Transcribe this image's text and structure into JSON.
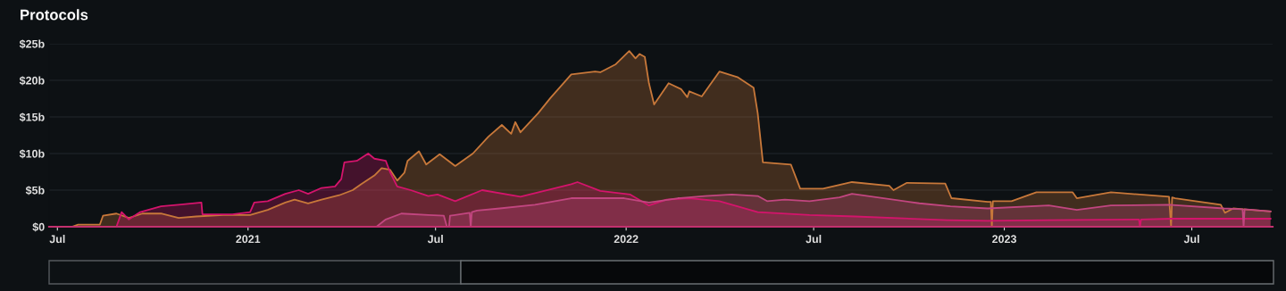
{
  "chart_data": {
    "type": "area",
    "title": "Protocols",
    "xlim": [
      "2020-06-23",
      "2023-09-17"
    ],
    "xticks": [
      {
        "value": "2020-07-01",
        "label": "Jul"
      },
      {
        "value": "2021-01-01",
        "label": "2021"
      },
      {
        "value": "2021-07-01",
        "label": "Jul"
      },
      {
        "value": "2022-01-01",
        "label": "2022"
      },
      {
        "value": "2022-07-01",
        "label": "Jul"
      },
      {
        "value": "2023-01-01",
        "label": "2023"
      },
      {
        "value": "2023-07-01",
        "label": "Jul"
      }
    ],
    "ylim": [
      0,
      25
    ],
    "yticks": [
      {
        "value": 0,
        "label": "$0"
      },
      {
        "value": 5,
        "label": "$5b"
      },
      {
        "value": 10,
        "label": "$10b"
      },
      {
        "value": 15,
        "label": "$15b"
      },
      {
        "value": 20,
        "label": "$20b"
      },
      {
        "value": 25,
        "label": "$25b"
      }
    ],
    "grid": "y",
    "series": [
      {
        "color": "#c8783a",
        "x": [
          "2020-06-23",
          "2020-07-15",
          "2020-07-21",
          "2020-08-11",
          "2020-08-14",
          "2020-08-27",
          "2020-09-08",
          "2020-09-21",
          "2020-10-09",
          "2020-10-26",
          "2020-11-12",
          "2020-12-08",
          "2021-01-03",
          "2021-01-20",
          "2021-02-06",
          "2021-02-15",
          "2021-02-28",
          "2021-03-13",
          "2021-03-30",
          "2021-04-12",
          "2021-04-20",
          "2021-05-03",
          "2021-05-10",
          "2021-05-18",
          "2021-05-25",
          "2021-06-01",
          "2021-06-04",
          "2021-06-15",
          "2021-06-22",
          "2021-07-05",
          "2021-07-20",
          "2021-08-06",
          "2021-08-21",
          "2021-09-03",
          "2021-09-12",
          "2021-09-16",
          "2021-09-21",
          "2021-10-08",
          "2021-10-20",
          "2021-11-09",
          "2021-12-02",
          "2021-12-07",
          "2021-12-22",
          "2022-01-04",
          "2022-01-10",
          "2022-01-14",
          "2022-01-19",
          "2022-01-23",
          "2022-01-28",
          "2022-02-11",
          "2022-02-23",
          "2022-03-01",
          "2022-03-03",
          "2022-03-15",
          "2022-04-01",
          "2022-04-19",
          "2022-05-04",
          "2022-05-08",
          "2022-05-13",
          "2022-06-09",
          "2022-06-18",
          "2022-07-10",
          "2022-08-07",
          "2022-09-12",
          "2022-09-16",
          "2022-09-29",
          "2022-11-05",
          "2022-11-11",
          "2022-12-16",
          "2022-12-19",
          "2022-12-20",
          "2022-12-21",
          "2023-01-08",
          "2023-02-01",
          "2023-03-08",
          "2023-03-12",
          "2023-04-14",
          "2023-06-09",
          "2023-06-11",
          "2023-06-12",
          "2023-06-15",
          "2023-07-29",
          "2023-08-02",
          "2023-08-10",
          "2023-08-19",
          "2023-09-15"
        ],
        "values": [
          0,
          0,
          0.3,
          0.3,
          1.5,
          1.8,
          1.2,
          1.8,
          1.8,
          1.2,
          1.4,
          1.6,
          1.6,
          2.3,
          3.3,
          3.7,
          3.2,
          3.7,
          4.3,
          5.0,
          5.8,
          7.0,
          8.0,
          7.8,
          6.3,
          7.4,
          9.0,
          10.3,
          8.5,
          9.9,
          8.3,
          10.0,
          12.3,
          13.9,
          12.7,
          14.3,
          12.9,
          15.5,
          17.6,
          20.8,
          21.2,
          21.1,
          22.2,
          24.0,
          23.0,
          23.6,
          23.2,
          19.6,
          16.7,
          19.6,
          18.8,
          17.7,
          18.5,
          17.8,
          21.2,
          20.4,
          19.0,
          15.5,
          8.8,
          8.5,
          5.2,
          5.2,
          6.1,
          5.6,
          5.0,
          6.0,
          5.9,
          3.9,
          3.4,
          3.4,
          0,
          3.5,
          3.5,
          4.7,
          4.7,
          3.9,
          4.7,
          4.1,
          0,
          4.0,
          3.9,
          3.0,
          1.9,
          2.5,
          2.4,
          2.1
        ]
      },
      {
        "color": "#d4146c",
        "x": [
          "2020-06-23",
          "2020-08-27",
          "2020-09-01",
          "2020-09-08",
          "2020-09-19",
          "2020-10-09",
          "2020-10-26",
          "2020-11-17",
          "2020-11-18",
          "2020-12-17",
          "2021-01-03",
          "2021-01-07",
          "2021-01-20",
          "2021-02-06",
          "2021-02-19",
          "2021-02-28",
          "2021-03-13",
          "2021-03-26",
          "2021-04-01",
          "2021-04-04",
          "2021-04-16",
          "2021-04-27",
          "2021-05-03",
          "2021-05-14",
          "2021-05-18",
          "2021-05-25",
          "2021-06-07",
          "2021-06-24",
          "2021-07-03",
          "2021-07-20",
          "2021-08-15",
          "2021-09-21",
          "2021-11-09",
          "2021-11-15",
          "2021-12-07",
          "2022-01-05",
          "2022-01-23",
          "2022-02-09",
          "2022-03-03",
          "2022-04-01",
          "2022-05-08",
          "2022-06-27",
          "2022-08-10",
          "2022-11-07",
          "2022-12-16",
          "2023-02-13",
          "2023-05-11",
          "2023-05-12",
          "2023-05-13",
          "2023-06-12",
          "2023-09-15"
        ],
        "values": [
          0,
          0,
          2.0,
          1.0,
          2.0,
          2.8,
          3.0,
          3.3,
          1.7,
          1.7,
          2.0,
          3.3,
          3.5,
          4.5,
          5.0,
          4.5,
          5.3,
          5.5,
          6.5,
          8.8,
          9.0,
          10.0,
          9.3,
          9.0,
          7.5,
          5.5,
          5.0,
          4.2,
          4.4,
          3.5,
          5.0,
          4.1,
          5.8,
          6.1,
          4.9,
          4.4,
          2.9,
          3.7,
          3.9,
          3.5,
          2.0,
          1.6,
          1.4,
          0.9,
          0.8,
          0.9,
          1.0,
          0,
          1.0,
          1.1,
          1.1
        ]
      },
      {
        "color": "#c24680",
        "x": [
          "2020-06-23",
          "2021-05-05",
          "2021-05-14",
          "2021-05-29",
          "2021-06-24",
          "2021-07-09",
          "2021-07-12",
          "2021-07-14",
          "2021-07-15",
          "2021-08-03",
          "2021-08-04",
          "2021-08-05",
          "2021-08-10",
          "2021-09-01",
          "2021-10-05",
          "2021-11-09",
          "2021-12-30",
          "2022-01-23",
          "2022-02-20",
          "2022-03-18",
          "2022-04-13",
          "2022-05-08",
          "2022-05-17",
          "2022-06-03",
          "2022-06-27",
          "2022-07-26",
          "2022-08-07",
          "2022-10-11",
          "2022-11-10",
          "2022-12-16",
          "2023-02-13",
          "2023-03-12",
          "2023-04-14",
          "2023-06-09",
          "2023-08-01",
          "2023-08-19",
          "2023-08-20",
          "2023-08-21",
          "2023-09-15"
        ],
        "values": [
          0,
          0,
          1.0,
          1.8,
          1.6,
          1.5,
          0,
          0,
          1.5,
          1.9,
          0,
          2.0,
          2.2,
          2.5,
          3.0,
          3.9,
          3.9,
          3.3,
          3.9,
          4.2,
          4.4,
          4.2,
          3.5,
          3.7,
          3.5,
          4.0,
          4.5,
          3.2,
          2.8,
          2.5,
          2.9,
          2.3,
          2.9,
          3.0,
          2.5,
          2.4,
          0,
          2.4,
          2.1
        ]
      }
    ]
  }
}
